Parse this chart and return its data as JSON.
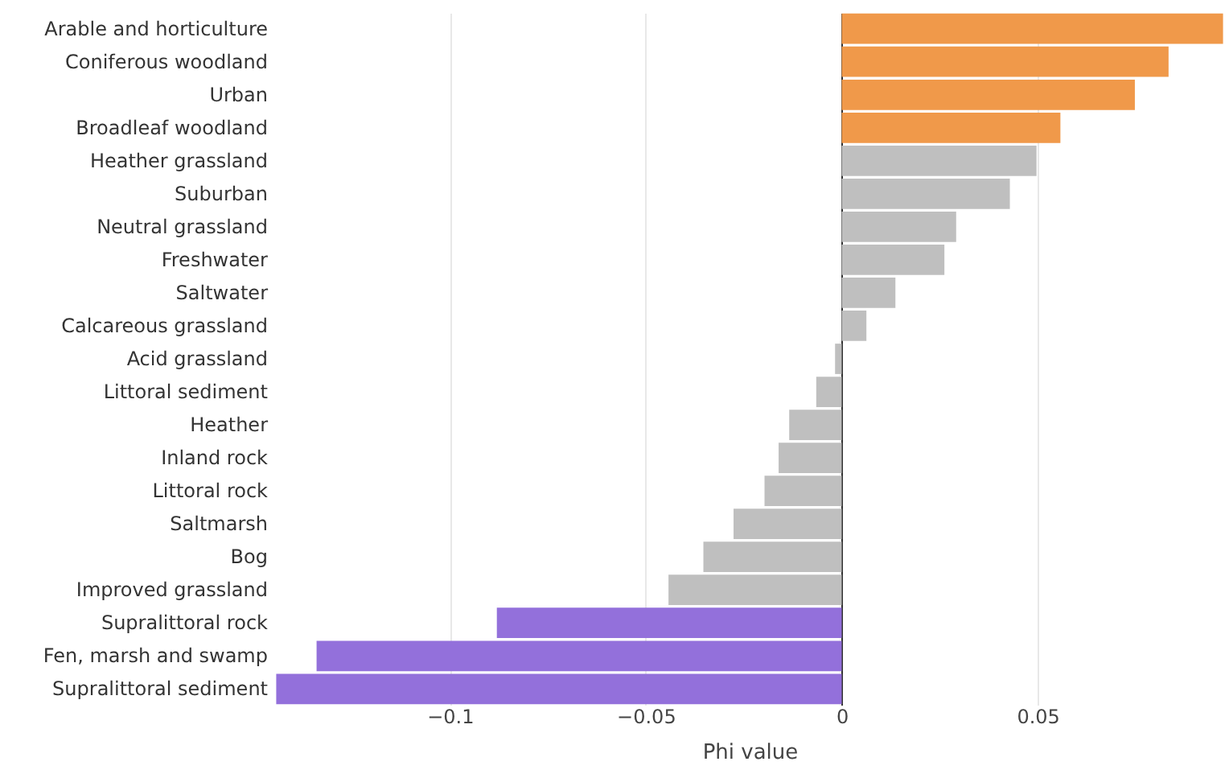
{
  "chart_data": {
    "type": "bar",
    "orientation": "horizontal",
    "xlabel": "Phi value",
    "categories": [
      "Arable and horticulture",
      "Coniferous woodland",
      "Urban",
      "Broadleaf woodland",
      "Heather grassland",
      "Suburban",
      "Neutral grassland",
      "Freshwater",
      "Saltwater",
      "Calcareous grassland",
      "Acid grassland",
      "Littoral sediment",
      "Heather",
      "Inland rock",
      "Littoral rock",
      "Saltmarsh",
      "Bog",
      "Improved grassland",
      "Supralittoral rock",
      "Fen, marsh and swamp",
      "Supralittoral sediment"
    ],
    "values": [
      0.0973,
      0.0834,
      0.0748,
      0.0558,
      0.0497,
      0.0429,
      0.0292,
      0.0262,
      0.0137,
      0.0063,
      -0.0017,
      -0.0065,
      -0.0134,
      -0.0161,
      -0.0197,
      -0.0276,
      -0.0353,
      -0.0442,
      -0.088,
      -0.134,
      -0.1443
    ],
    "colors": [
      "#f0994a",
      "#f0994a",
      "#f0994a",
      "#f0994a",
      "#bfbfbf",
      "#bfbfbf",
      "#bfbfbf",
      "#bfbfbf",
      "#bfbfbf",
      "#bfbfbf",
      "#bfbfbf",
      "#bfbfbf",
      "#bfbfbf",
      "#bfbfbf",
      "#bfbfbf",
      "#bfbfbf",
      "#bfbfbf",
      "#bfbfbf",
      "#9370db",
      "#9370db",
      "#9370db"
    ],
    "xlim": [
      -0.145,
      0.098
    ],
    "xticks": [
      {
        "value": -0.1,
        "label": "−0.1"
      },
      {
        "value": -0.05,
        "label": "−0.05"
      },
      0,
      {
        "value": 0.05,
        "label": "0.05"
      }
    ],
    "grid": "x"
  }
}
